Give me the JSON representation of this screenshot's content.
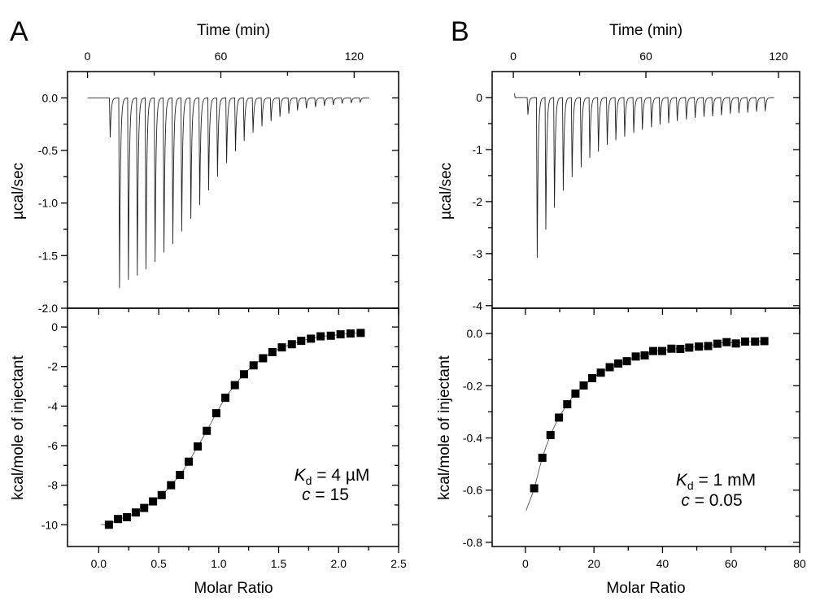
{
  "panels": [
    {
      "letter": "A",
      "time_label": "Time (min)",
      "heat_rate_label": "µcal/sec",
      "enthalpy_label": "kcal/mole of injectant",
      "molar_ratio_label": "Molar Ratio",
      "annotation": {
        "k_symbol": "K",
        "k_sub": "d",
        "k_value": " = 4 µM",
        "c_symbol": "c",
        "c_value": " = 15"
      }
    },
    {
      "letter": "B",
      "time_label": "Time (min)",
      "heat_rate_label": "µcal/sec",
      "enthalpy_label": "kcal/mole of injectant",
      "molar_ratio_label": "Molar Ratio",
      "annotation": {
        "k_symbol": "K",
        "k_sub": "d",
        "k_value": " = 1 mM",
        "c_symbol": "c",
        "c_value": " = 0.05"
      }
    }
  ],
  "colors": {
    "trace": "#222222",
    "points": "#000000",
    "fit": "#555555",
    "frame": "#000000"
  },
  "chart_data": [
    {
      "panel": "A",
      "position": "top",
      "type": "line",
      "xlabel": "Time (min)",
      "ylabel": "µcal/sec",
      "xlim": [
        -9,
        140
      ],
      "ylim": [
        -2.0,
        0.25
      ],
      "grid": false,
      "xticks": {
        "major": [
          0,
          60,
          120
        ],
        "labels": [
          "0",
          "60",
          "120"
        ],
        "minor": [
          30,
          90
        ]
      },
      "yticks": {
        "major": [
          0,
          -0.5,
          -1.0,
          -1.5,
          -2.0
        ],
        "labels": [
          "0.0",
          "-0.5",
          "-1.0",
          "-1.5",
          "-2.0"
        ],
        "minor": [
          -0.25,
          -0.75,
          -1.25,
          -1.75
        ]
      },
      "baseline_time_range": [
        0,
        126.8
      ],
      "injection_peaks": {
        "time": [
          10.2,
          14.4,
          18.4,
          22.4,
          26.3,
          30.4,
          34.4,
          38.4,
          42.4,
          46.5,
          50.5,
          54.5,
          58.5,
          62.6,
          66.6,
          70.5,
          74.5,
          78.5,
          82.6,
          86.6,
          90.6,
          94.5,
          98.5,
          102.6,
          106.6,
          110.6,
          114.6,
          118.7,
          122.7
        ],
        "minimum": [
          -0.376,
          -1.81,
          -1.73,
          -1.69,
          -1.63,
          -1.56,
          -1.47,
          -1.39,
          -1.27,
          -1.15,
          -1.02,
          -0.88,
          -0.75,
          -0.62,
          -0.51,
          -0.41,
          -0.33,
          -0.27,
          -0.22,
          -0.18,
          -0.15,
          -0.12,
          -0.1,
          -0.088,
          -0.075,
          -0.067,
          -0.054,
          -0.049,
          -0.044
        ]
      }
    },
    {
      "panel": "A",
      "position": "bottom",
      "type": "scatter",
      "xlabel": "Molar Ratio",
      "ylabel": "kcal/mole of injectant",
      "xlim": [
        -0.26,
        2.5
      ],
      "ylim": [
        -11.1,
        0.95
      ],
      "grid": false,
      "xticks": {
        "major": [
          0,
          0.5,
          1.0,
          1.5,
          2.0,
          2.5
        ],
        "labels": [
          "0.0",
          "0.5",
          "1.0",
          "1.5",
          "2.0",
          "2.5"
        ],
        "minor": [
          0.25,
          0.75,
          1.25,
          1.75,
          2.25
        ]
      },
      "yticks": {
        "major": [
          0,
          -2,
          -4,
          -6,
          -8,
          -10
        ],
        "labels": [
          "0",
          "-2",
          "-4",
          "-6",
          "-8",
          "-10"
        ],
        "minor": [
          -1,
          -3,
          -5,
          -7,
          -9
        ]
      },
      "x": [
        0.085,
        0.161,
        0.235,
        0.309,
        0.379,
        0.453,
        0.525,
        0.603,
        0.677,
        0.751,
        0.825,
        0.901,
        0.98,
        1.056,
        1.135,
        1.211,
        1.291,
        1.37,
        1.448,
        1.527,
        1.61,
        1.688,
        1.769,
        1.85,
        1.935,
        2.016,
        2.099,
        2.184
      ],
      "y": [
        -10.0,
        -9.71,
        -9.62,
        -9.38,
        -9.15,
        -8.82,
        -8.5,
        -8.0,
        -7.48,
        -6.81,
        -6.04,
        -5.25,
        -4.36,
        -3.58,
        -2.94,
        -2.39,
        -1.94,
        -1.58,
        -1.27,
        -1.03,
        -0.87,
        -0.7,
        -0.59,
        -0.47,
        -0.44,
        -0.37,
        -0.33,
        -0.3
      ],
      "fit_start": [
        0.02,
        -9.97
      ]
    },
    {
      "panel": "B",
      "position": "top",
      "type": "line",
      "xlabel": "Time (min)",
      "ylabel": "µcal/sec",
      "xlim": [
        -9.6,
        129.6
      ],
      "ylim": [
        -4.05,
        0.5
      ],
      "grid": false,
      "xticks": {
        "major": [
          0,
          60,
          120
        ],
        "labels": [
          "0",
          "60",
          "120"
        ],
        "minor": [
          30,
          90
        ]
      },
      "yticks": {
        "major": [
          0,
          -1,
          -2,
          -3,
          -4
        ],
        "labels": [
          "0",
          "-1",
          "-2",
          "-3",
          "-4"
        ],
        "minor": [
          -0.5,
          -1.5,
          -2.5,
          -3.5
        ]
      },
      "baseline_time_range": [
        0.5,
        118
      ],
      "injection_peaks": {
        "time": [
          6.6,
          10.8,
          14.7,
          18.6,
          22.6,
          26.6,
          30.7,
          34.6,
          38.5,
          42.5,
          46.4,
          50.4,
          54.5,
          58.4,
          62.5,
          66.4,
          70.3,
          74.2,
          78.3,
          82.3,
          86.3,
          90.2,
          94.2,
          98.2,
          102.1,
          106.1,
          110.1,
          114.0
        ],
        "minimum": [
          -0.33,
          -3.08,
          -2.54,
          -2.12,
          -1.79,
          -1.53,
          -1.34,
          -1.16,
          -1.04,
          -0.91,
          -0.82,
          -0.75,
          -0.68,
          -0.62,
          -0.57,
          -0.52,
          -0.49,
          -0.45,
          -0.42,
          -0.39,
          -0.37,
          -0.36,
          -0.34,
          -0.31,
          -0.3,
          -0.29,
          -0.27,
          -0.26
        ]
      }
    },
    {
      "panel": "B",
      "position": "bottom",
      "type": "scatter",
      "xlabel": "Molar Ratio",
      "ylabel": "kcal/mole of injectant",
      "xlim": [
        -9.7,
        80
      ],
      "ylim": [
        -0.816,
        0.097
      ],
      "grid": false,
      "xticks": {
        "major": [
          0,
          20,
          40,
          60,
          80
        ],
        "labels": [
          "0",
          "20",
          "40",
          "60",
          "80"
        ],
        "minor": [
          10,
          30,
          50,
          70
        ]
      },
      "yticks": {
        "major": [
          0,
          -0.2,
          -0.4,
          -0.6,
          -0.8
        ],
        "labels": [
          "0.0",
          "-0.2",
          "-0.4",
          "-0.6",
          "-0.8"
        ],
        "minor": [
          -0.1,
          -0.3,
          -0.5,
          -0.7
        ]
      },
      "x": [
        2.55,
        4.94,
        7.32,
        9.79,
        12.2,
        14.6,
        17.0,
        19.5,
        22.0,
        24.6,
        27.1,
        29.6,
        32.2,
        34.8,
        37.3,
        39.9,
        42.6,
        45.2,
        47.8,
        50.6,
        53.3,
        56.0,
        58.7,
        61.4,
        64.1,
        67.0,
        69.7
      ],
      "y": [
        -0.593,
        -0.476,
        -0.389,
        -0.322,
        -0.271,
        -0.23,
        -0.199,
        -0.171,
        -0.15,
        -0.129,
        -0.115,
        -0.106,
        -0.088,
        -0.084,
        -0.067,
        -0.067,
        -0.058,
        -0.059,
        -0.054,
        -0.05,
        -0.048,
        -0.039,
        -0.033,
        -0.038,
        -0.031,
        -0.031,
        -0.029
      ],
      "fit_start": [
        0.2,
        -0.678
      ]
    }
  ]
}
